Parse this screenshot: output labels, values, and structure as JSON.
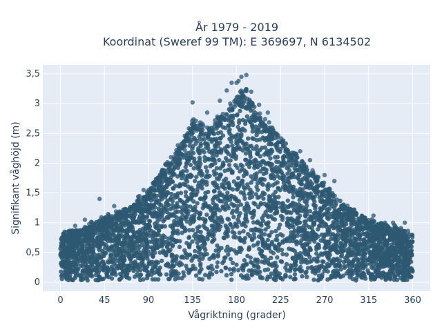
{
  "chart_data": {
    "type": "scatter",
    "title_line1": "År 1979 - 2019",
    "title_line2": "Koordinat (Sweref 99 TM): E 369697, N 6134502",
    "xlabel": "Vågriktning (grader)",
    "ylabel": "Signifikant våghöjd (m)",
    "xlim": [
      -18,
      378
    ],
    "ylim": [
      -0.15,
      3.65
    ],
    "xticks": [
      {
        "value": 0,
        "label": "0"
      },
      {
        "value": 45,
        "label": "45"
      },
      {
        "value": 90,
        "label": "90"
      },
      {
        "value": 135,
        "label": "135"
      },
      {
        "value": 180,
        "label": "180"
      },
      {
        "value": 225,
        "label": "225"
      },
      {
        "value": 270,
        "label": "270"
      },
      {
        "value": 315,
        "label": "315"
      },
      {
        "value": 360,
        "label": "360"
      }
    ],
    "yticks": [
      {
        "value": 0,
        "label": "0"
      },
      {
        "value": 0.5,
        "label": "0,5"
      },
      {
        "value": 1,
        "label": "1"
      },
      {
        "value": 1.5,
        "label": "1,5"
      },
      {
        "value": 2,
        "label": "2"
      },
      {
        "value": 2.5,
        "label": "2,5"
      },
      {
        "value": 3,
        "label": "3"
      },
      {
        "value": 3.5,
        "label": "3,5"
      }
    ],
    "grid": true,
    "marker_color": "#2e5871",
    "plot_bgcolor": "#e5ecf6",
    "gridcolor": "#ffffff",
    "envelope": [
      {
        "x": 0,
        "y": 0.85
      },
      {
        "x": 20,
        "y": 0.88
      },
      {
        "x": 45,
        "y": 1.1
      },
      {
        "x": 70,
        "y": 1.25
      },
      {
        "x": 90,
        "y": 1.55
      },
      {
        "x": 110,
        "y": 2.05
      },
      {
        "x": 125,
        "y": 2.35
      },
      {
        "x": 135,
        "y": 2.75
      },
      {
        "x": 150,
        "y": 2.55
      },
      {
        "x": 165,
        "y": 2.85
      },
      {
        "x": 180,
        "y": 3.1
      },
      {
        "x": 190,
        "y": 3.25
      },
      {
        "x": 200,
        "y": 2.85
      },
      {
        "x": 215,
        "y": 2.6
      },
      {
        "x": 230,
        "y": 2.35
      },
      {
        "x": 250,
        "y": 2.0
      },
      {
        "x": 270,
        "y": 1.65
      },
      {
        "x": 290,
        "y": 1.3
      },
      {
        "x": 315,
        "y": 1.05
      },
      {
        "x": 340,
        "y": 0.95
      },
      {
        "x": 360,
        "y": 0.8
      }
    ],
    "outliers": [
      {
        "x": 180,
        "y": 3.35
      },
      {
        "x": 182,
        "y": 3.38
      },
      {
        "x": 185,
        "y": 3.45
      },
      {
        "x": 190,
        "y": 3.48
      },
      {
        "x": 175,
        "y": 3.35
      },
      {
        "x": 195,
        "y": 3.2
      },
      {
        "x": 170,
        "y": 3.22
      },
      {
        "x": 163,
        "y": 3.05
      },
      {
        "x": 135,
        "y": 3.02
      },
      {
        "x": 150,
        "y": 2.85
      },
      {
        "x": 203,
        "y": 2.98
      },
      {
        "x": 212,
        "y": 2.85
      },
      {
        "x": 40,
        "y": 1.4
      },
      {
        "x": 55,
        "y": 1.28
      },
      {
        "x": 85,
        "y": 1.55
      },
      {
        "x": 95,
        "y": 1.6
      },
      {
        "x": 25,
        "y": 1.05
      },
      {
        "x": 15,
        "y": 0.95
      },
      {
        "x": 270,
        "y": 1.8
      },
      {
        "x": 280,
        "y": 1.7
      },
      {
        "x": 300,
        "y": 1.22
      },
      {
        "x": 320,
        "y": 1.12
      },
      {
        "x": 340,
        "y": 1.0
      },
      {
        "x": 352,
        "y": 1.0
      },
      {
        "x": 245,
        "y": 2.2
      },
      {
        "x": 255,
        "y": 2.05
      },
      {
        "x": 113,
        "y": 2.1
      },
      {
        "x": 120,
        "y": 2.3
      }
    ]
  }
}
